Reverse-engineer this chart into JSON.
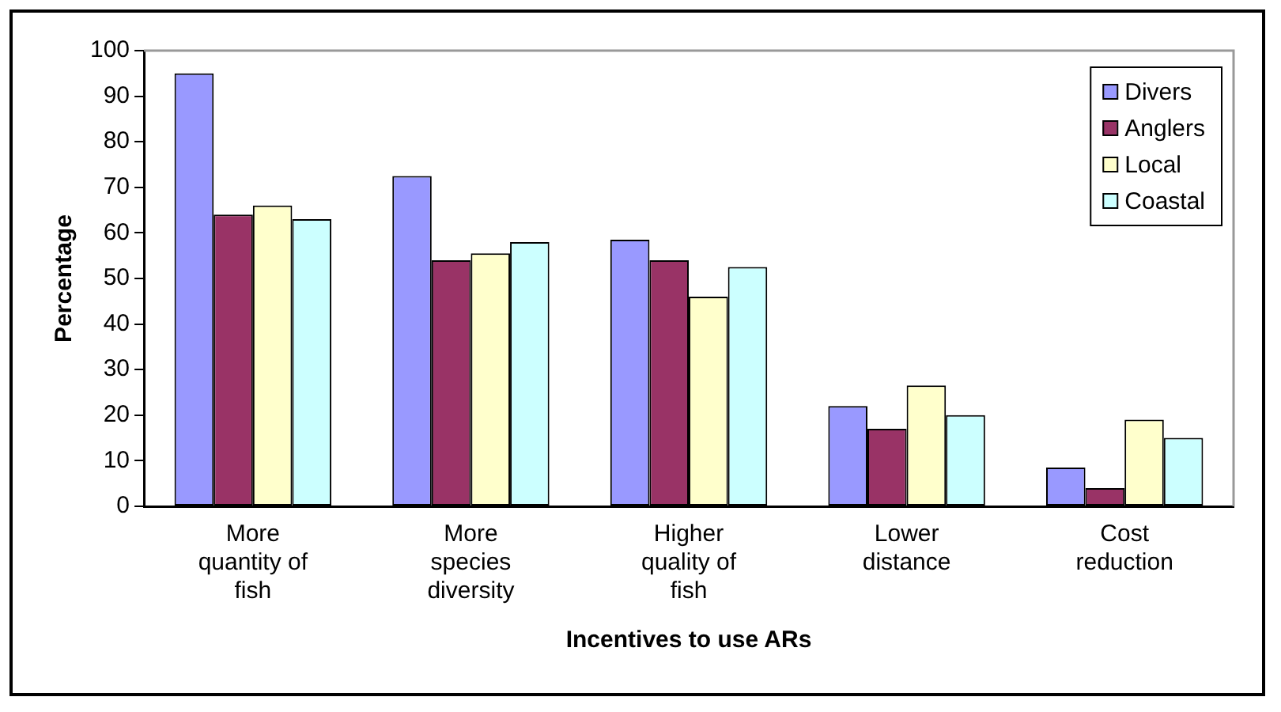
{
  "chart_data": {
    "type": "bar",
    "xlabel": "Incentives to use ARs",
    "ylabel": "Percentage",
    "categories": [
      "More quantity of fish",
      "More species diversity",
      "Higher quality of fish",
      "Lower distance",
      "Cost reduction"
    ],
    "series": [
      {
        "name": "Divers",
        "color": "#9999ff",
        "values": [
          95,
          72.5,
          58.5,
          22,
          8.5
        ]
      },
      {
        "name": "Anglers",
        "color": "#993366",
        "values": [
          64,
          54,
          54,
          17,
          4
        ]
      },
      {
        "name": "Local",
        "color": "#ffffcc",
        "values": [
          66,
          55.5,
          46,
          26.5,
          19
        ]
      },
      {
        "name": "Coastal",
        "color": "#ccffff",
        "values": [
          63,
          58,
          52.5,
          20,
          15
        ]
      }
    ],
    "ylim": [
      0,
      100
    ],
    "yticks": [
      0,
      10,
      20,
      30,
      40,
      50,
      60,
      70,
      80,
      90,
      100
    ],
    "grid": false,
    "legend": "top right"
  }
}
